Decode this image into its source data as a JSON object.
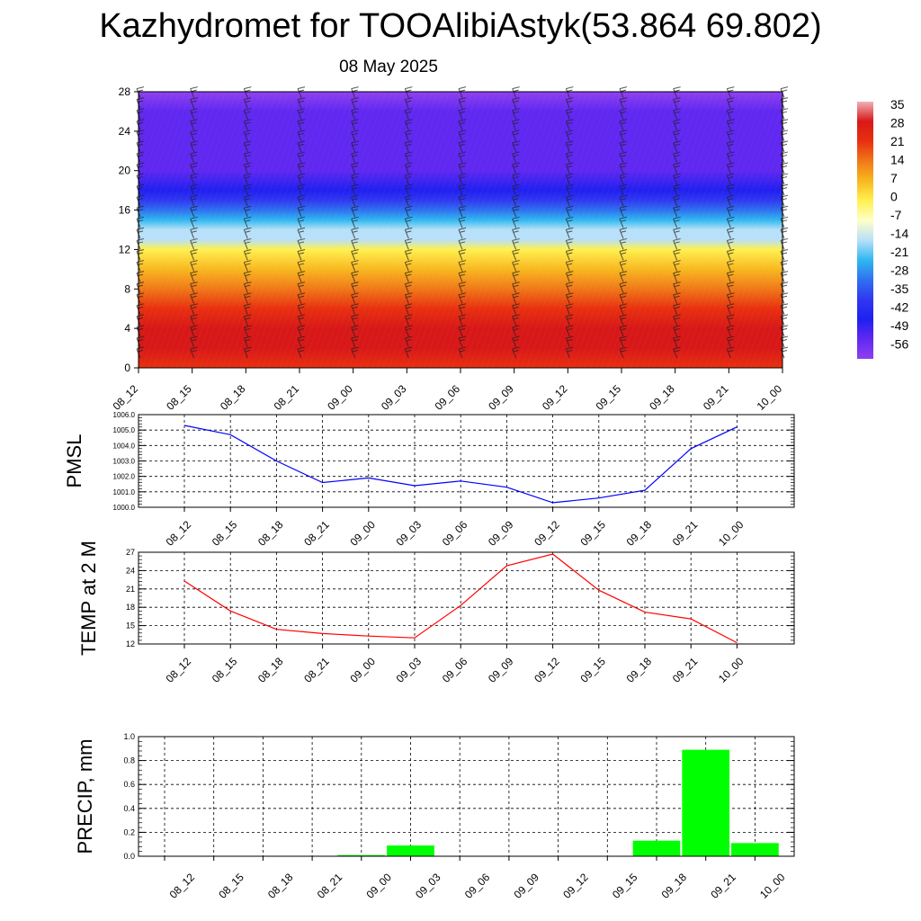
{
  "title": "Kazhydromet for TOOAlibiAstyk(53.864 69.802)",
  "subtitle": "08 May 2025",
  "time_labels": [
    "08_12",
    "08_15",
    "08_18",
    "08_21",
    "09_00",
    "09_03",
    "09_06",
    "09_09",
    "09_12",
    "09_15",
    "09_18",
    "09_21",
    "10_00"
  ],
  "colorbar": {
    "labels": [
      "35",
      "28",
      "21",
      "14",
      "7",
      "0",
      "-7",
      "-14",
      "-21",
      "-28",
      "-35",
      "-42",
      "-49",
      "-56"
    ],
    "stops": [
      {
        "value": 35,
        "color": "#f0b0b8"
      },
      {
        "value": 28,
        "color": "#d81818"
      },
      {
        "value": 14,
        "color": "#e83010"
      },
      {
        "value": 7,
        "color": "#f07818"
      },
      {
        "value": 0,
        "color": "#f8b820"
      },
      {
        "value": -7,
        "color": "#fff050"
      },
      {
        "value": -14,
        "color": "#ffffc8"
      },
      {
        "value": -21,
        "color": "#b8e0f8"
      },
      {
        "value": -28,
        "color": "#30b8f0"
      },
      {
        "value": -35,
        "color": "#3070f0"
      },
      {
        "value": -42,
        "color": "#3038f0"
      },
      {
        "value": -49,
        "color": "#2020f0"
      },
      {
        "value": -56,
        "color": "#6028f0"
      },
      {
        "value": -63,
        "color": "#9040f0"
      }
    ]
  },
  "chart_data": [
    {
      "type": "heatmap",
      "description_axis": "height",
      "x": [
        "08_12",
        "08_15",
        "08_18",
        "08_21",
        "09_00",
        "09_03",
        "09_06",
        "09_09",
        "09_12",
        "09_15",
        "09_18",
        "09_21",
        "10_00"
      ],
      "yticks": [
        0,
        4,
        8,
        12,
        16,
        20,
        24,
        28
      ],
      "ylim": [
        0,
        28
      ],
      "profile": [
        {
          "y": 0,
          "v": 21
        },
        {
          "y": 2,
          "v": 24
        },
        {
          "y": 4,
          "v": 26
        },
        {
          "y": 6,
          "v": 18
        },
        {
          "y": 8,
          "v": 10
        },
        {
          "y": 10,
          "v": 2
        },
        {
          "y": 12,
          "v": -8
        },
        {
          "y": 13,
          "v": -18
        },
        {
          "y": 14,
          "v": -24
        },
        {
          "y": 15,
          "v": -30
        },
        {
          "y": 16,
          "v": -37
        },
        {
          "y": 17,
          "v": -44
        },
        {
          "y": 18,
          "v": -52
        },
        {
          "y": 20,
          "v": -56
        },
        {
          "y": 22,
          "v": -56
        },
        {
          "y": 24,
          "v": -54
        },
        {
          "y": 26,
          "v": -58
        },
        {
          "y": 28,
          "v": -62
        }
      ],
      "has_wind_barbs": true
    },
    {
      "type": "line",
      "ylabel": "PMSL",
      "x": [
        "08_12",
        "08_15",
        "08_18",
        "08_21",
        "09_00",
        "09_03",
        "09_06",
        "09_09",
        "09_12",
        "09_15",
        "09_18",
        "09_21",
        "10_00"
      ],
      "values": [
        1005.3,
        1004.7,
        1003.0,
        1001.6,
        1001.9,
        1001.4,
        1001.7,
        1001.3,
        1000.3,
        1000.6,
        1001.1,
        1003.8,
        1005.2
      ],
      "ylim": [
        1000.0,
        1006.0
      ],
      "yticks": [
        "1000.0",
        "1001.0",
        "1002.0",
        "1003.0",
        "1004.0",
        "1005.0",
        "1006.0"
      ],
      "color": "#0000ff",
      "grid": true
    },
    {
      "type": "line",
      "ylabel": "TEMP at 2 M",
      "x": [
        "08_12",
        "08_15",
        "08_18",
        "08_21",
        "09_00",
        "09_03",
        "09_06",
        "09_09",
        "09_12",
        "09_15",
        "09_18",
        "09_21",
        "10_00"
      ],
      "values": [
        22.3,
        17.4,
        14.4,
        13.7,
        13.3,
        13.0,
        18.3,
        24.8,
        26.7,
        20.8,
        17.2,
        16.1,
        12.2
      ],
      "ylim": [
        12,
        27
      ],
      "yticks": [
        "12",
        "15",
        "18",
        "21",
        "24",
        "27"
      ],
      "color": "#ff0000",
      "grid": true
    },
    {
      "type": "bar",
      "ylabel": "PRECIP, mm",
      "categories": [
        "08_12",
        "08_15",
        "08_18",
        "08_21",
        "09_00",
        "09_03",
        "09_06",
        "09_09",
        "09_12",
        "09_15",
        "09_18",
        "09_21",
        "10_00"
      ],
      "values": [
        0,
        0,
        0,
        0,
        0.01,
        0.09,
        0,
        0,
        0,
        0,
        0.13,
        0.89,
        0.11
      ],
      "ylim": [
        0,
        1.0
      ],
      "yticks": [
        "0.0",
        "0.2",
        "0.4",
        "0.6",
        "0.8",
        "1.0"
      ],
      "color": "#00ff00",
      "grid": true
    }
  ]
}
